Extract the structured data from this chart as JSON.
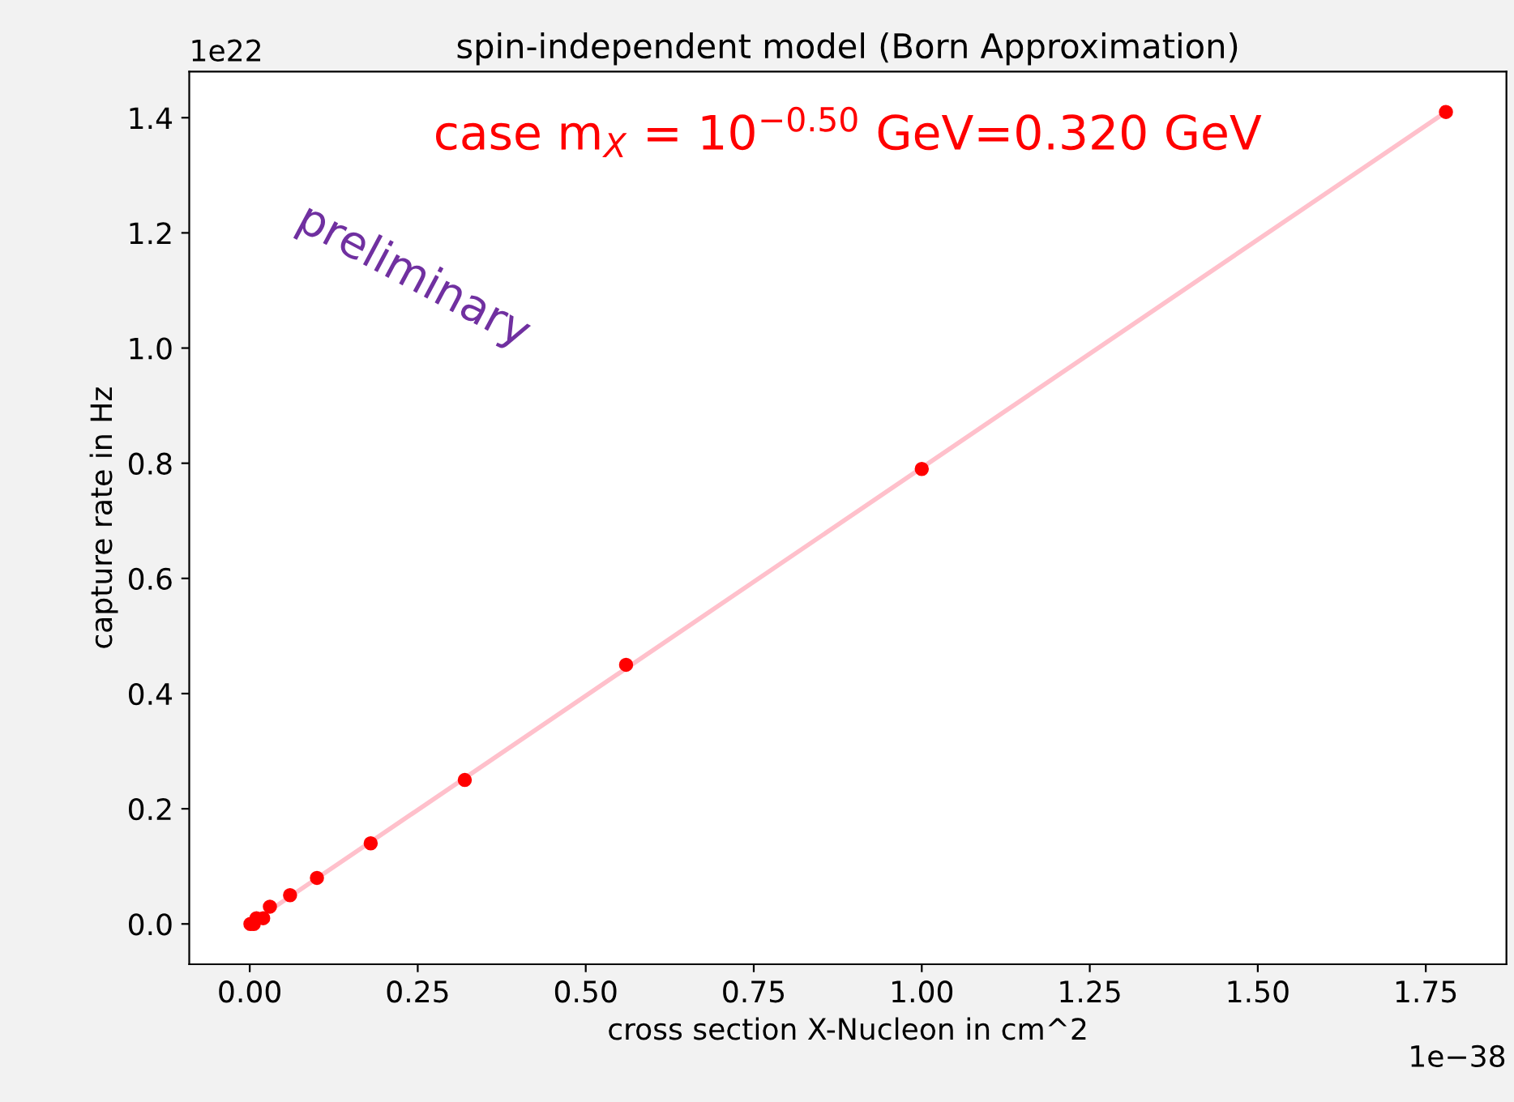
{
  "chart_data": {
    "type": "scatter",
    "title": "spin-independent model (Born Approximation)",
    "xlabel": "cross section X-Nucleon in cm^2",
    "ylabel": "capture rate in Hz",
    "annotations": [
      "case m$_{X}$ = 10$^{−0.50}$ GeV=0.320 GeV",
      "preliminary",
      "1e22",
      "1e−38"
    ],
    "series": [
      {
        "type": "line",
        "marker": "none",
        "color": "#ffc0cb",
        "x": [
          0,
          1.78
        ],
        "values": [
          0,
          1.41
        ]
      },
      {
        "color": "#ff0000",
        "x": [
          0.001,
          0.006,
          0.01,
          0.02,
          0.03,
          0.06,
          0.1,
          0.18,
          0.32,
          0.56,
          1.0,
          1.78
        ],
        "values": [
          0,
          0,
          0.01,
          0.01,
          0.03,
          0.05,
          0.08,
          0.14,
          0.25,
          0.45,
          0.79,
          1.41
        ]
      }
    ],
    "xlim": [
      -0.09,
      1.87
    ],
    "ylim": [
      -0.07,
      1.48
    ],
    "xticks": [
      {
        "value": 0,
        "label": "0.00"
      },
      {
        "value": 0.25,
        "label": "0.25"
      },
      {
        "value": 0.5,
        "label": "0.50"
      },
      {
        "value": 0.75,
        "label": "0.75"
      },
      {
        "value": 1,
        "label": "1.00"
      },
      {
        "value": 1.25,
        "label": "1.25"
      },
      {
        "value": 1.5,
        "label": "1.50"
      },
      {
        "value": 1.75,
        "label": "1.75"
      }
    ],
    "yticks": [
      {
        "value": 0,
        "label": "0.0"
      },
      0.2,
      0.4,
      0.6,
      0.8,
      {
        "value": 1,
        "label": "1.0"
      },
      1.2,
      1.4
    ],
    "marker": "circle",
    "line_style": "solid"
  }
}
